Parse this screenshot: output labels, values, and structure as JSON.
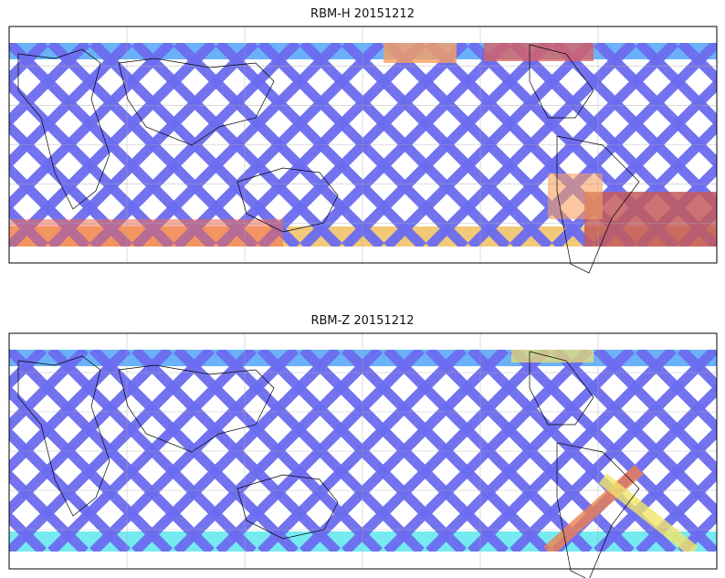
{
  "panels": [
    {
      "title": "RBM-H 20151212",
      "variable": "RBM-H",
      "date": "20151212",
      "swath_color": "#6c6cf0",
      "hot_regions": [
        {
          "region": "south-central-pacific-low-lat",
          "color": "#f36a4e"
        },
        {
          "region": "north-indian-ocean-band",
          "color": "#f0c060"
        },
        {
          "region": "south-atlantic",
          "color": "#c35a5a"
        }
      ]
    },
    {
      "title": "RBM-Z 20151212",
      "variable": "RBM-Z",
      "date": "20151212",
      "swath_color": "#6c6cf0",
      "hot_regions": [
        {
          "region": "south-atlantic-diagonal",
          "color": "#f08050"
        }
      ]
    }
  ],
  "colormap": [
    "#5b5bf0",
    "#4aa0f7",
    "#5ee6ee",
    "#a7f07a",
    "#f3e66a",
    "#f8a060",
    "#e0605a",
    "#c05a5a"
  ],
  "map_projection": "cylindrical",
  "map_features": [
    "coastlines",
    "gridlines"
  ]
}
